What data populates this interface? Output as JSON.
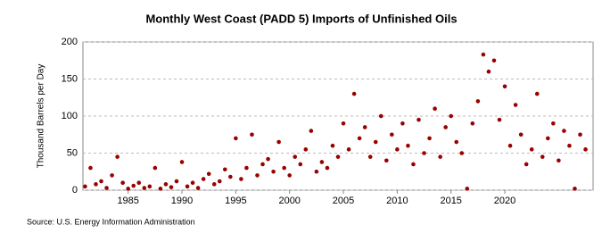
{
  "chart_data": {
    "type": "scatter",
    "title": "Monthly West Coast (PADD 5) Imports of Unfinished Oils",
    "y_label": "Thousand Barrels per Day",
    "source": "Source: U.S. Energy Information Administration",
    "color": "#990000",
    "grid": true,
    "xlim": [
      1980.8,
      2028.2
    ],
    "xticks": [
      1985,
      1990,
      1995,
      2000,
      2005,
      2010,
      2015,
      2020
    ],
    "ylim": [
      0,
      200
    ],
    "yticks": [
      0,
      50,
      100,
      150,
      200
    ],
    "x": [
      1981,
      1981.5,
      1982,
      1982.5,
      1983,
      1983.5,
      1984,
      1984.5,
      1985,
      1985.5,
      1986,
      1986.5,
      1987,
      1987.5,
      1988,
      1988.5,
      1989,
      1989.5,
      1990,
      1990.5,
      1991,
      1991.5,
      1992,
      1992.5,
      1993,
      1993.5,
      1994,
      1994.5,
      1995,
      1995.5,
      1996,
      1996.5,
      1997,
      1997.5,
      1998,
      1998.5,
      1999,
      1999.5,
      2000,
      2000.5,
      2001,
      2001.5,
      2002,
      2002.5,
      2003,
      2003.5,
      2004,
      2004.5,
      2005,
      2005.5,
      2006,
      2006.5,
      2007,
      2007.5,
      2008,
      2008.5,
      2009,
      2009.5,
      2010,
      2010.5,
      2011,
      2011.5,
      2012,
      2012.5,
      2013,
      2013.5,
      2014,
      2014.5,
      2015,
      2015.5,
      2016,
      2016.5,
      2017,
      2017.5,
      2018,
      2018.5,
      2019,
      2019.5,
      2020,
      2020.5,
      2021,
      2021.5,
      2022,
      2022.5,
      2023,
      2023.5,
      2024,
      2024.5,
      2025,
      2025.5,
      2026,
      2026.5,
      2027,
      2027.5
    ],
    "values": [
      5,
      30,
      8,
      12,
      3,
      20,
      45,
      10,
      2,
      6,
      10,
      3,
      5,
      30,
      2,
      8,
      4,
      12,
      38,
      5,
      10,
      3,
      15,
      22,
      8,
      12,
      28,
      18,
      70,
      15,
      30,
      75,
      20,
      35,
      42,
      25,
      65,
      30,
      20,
      45,
      35,
      55,
      80,
      25,
      38,
      30,
      60,
      45,
      90,
      55,
      130,
      70,
      85,
      45,
      65,
      100,
      40,
      75,
      55,
      90,
      60,
      35,
      95,
      50,
      70,
      110,
      45,
      85,
      100,
      65,
      50,
      2,
      90,
      120,
      183,
      160,
      175,
      95,
      140,
      60,
      115,
      75,
      35,
      55,
      130,
      45,
      70,
      90,
      40,
      80,
      60,
      2,
      75,
      55
    ]
  }
}
